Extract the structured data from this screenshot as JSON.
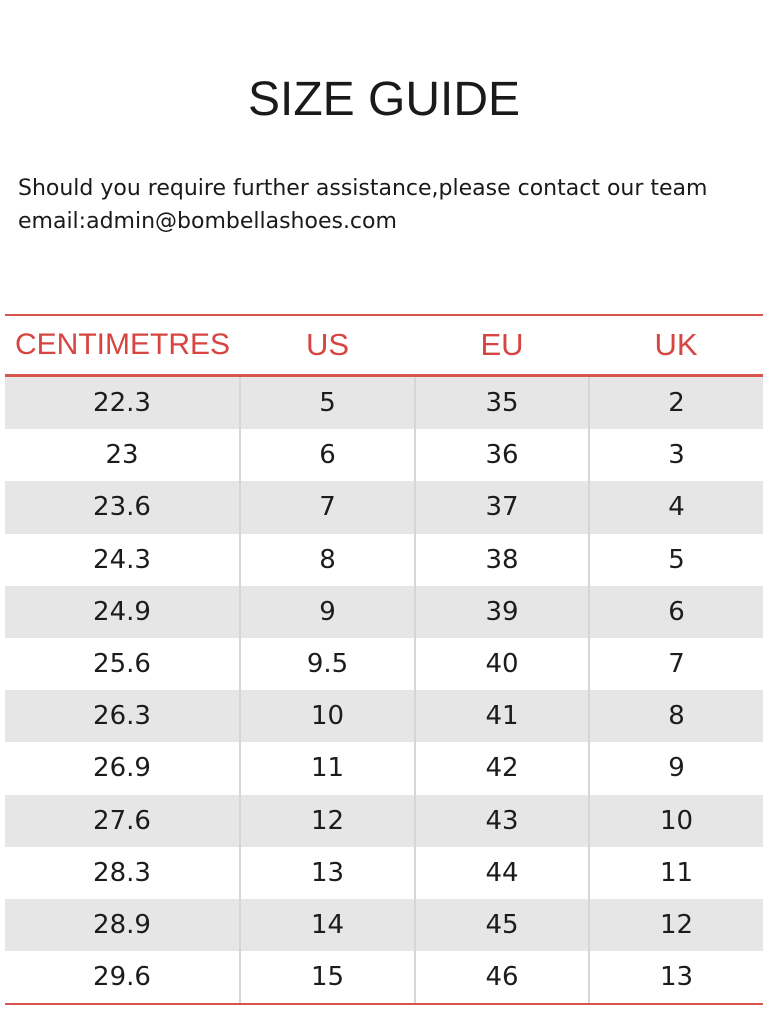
{
  "title": "SIZE GUIDE",
  "intro": {
    "line1": "Should you require further assistance,please contact our team",
    "line2": "email:admin@bombellashoes.com"
  },
  "accent_color": "#d64541",
  "table": {
    "headers": [
      "CENTIMETRES",
      "US",
      "EU",
      "UK"
    ],
    "rows": [
      [
        "22.3",
        "5",
        "35",
        "2"
      ],
      [
        "23",
        "6",
        "36",
        "3"
      ],
      [
        "23.6",
        "7",
        "37",
        "4"
      ],
      [
        "24.3",
        "8",
        "38",
        "5"
      ],
      [
        "24.9",
        "9",
        "39",
        "6"
      ],
      [
        "25.6",
        "9.5",
        "40",
        "7"
      ],
      [
        "26.3",
        "10",
        "41",
        "8"
      ],
      [
        "26.9",
        "11",
        "42",
        "9"
      ],
      [
        "27.6",
        "12",
        "43",
        "10"
      ],
      [
        "28.3",
        "13",
        "44",
        "11"
      ],
      [
        "28.9",
        "14",
        "45",
        "12"
      ],
      [
        "29.6",
        "15",
        "46",
        "13"
      ]
    ]
  }
}
